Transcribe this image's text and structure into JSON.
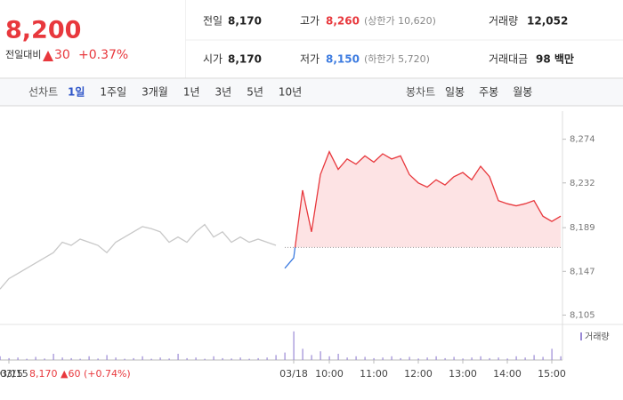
{
  "header": {
    "price": "8,200",
    "change_label": "전일대비",
    "change": "30",
    "change_pct": "+0.37%"
  },
  "stats": [
    {
      "label": "전일",
      "value": "8,170"
    },
    {
      "label": "고가",
      "value": "8,260",
      "note": "(상한가 10,620)"
    },
    {
      "label": "거래량",
      "value": "12,052"
    },
    {
      "label": "시가",
      "value": "8,170"
    },
    {
      "label": "저가",
      "value": "8,150",
      "note": "(하한가 5,720)"
    },
    {
      "label": "거래대금",
      "value": "98 백만"
    }
  ],
  "tabs": {
    "line_label": "선차트",
    "line": [
      "1일",
      "1주일",
      "3개월",
      "1년",
      "3년",
      "5년",
      "10년"
    ],
    "candle_label": "봉차트",
    "candle": [
      "일봉",
      "주봉",
      "월봉"
    ]
  },
  "chart_data": {
    "type": "line",
    "categories": [
      null,
      "03/15",
      null,
      null,
      null,
      null,
      null,
      null,
      null,
      null,
      null,
      null,
      null,
      null,
      null,
      null,
      null,
      null,
      null,
      null,
      null,
      null,
      null,
      null,
      null,
      null,
      null,
      null,
      null,
      null,
      null,
      null,
      null,
      "03/18",
      null,
      null,
      null,
      "10:00",
      null,
      null,
      null,
      null,
      "11:00",
      null,
      null,
      null,
      null,
      "12:00",
      null,
      null,
      null,
      null,
      "13:00",
      null,
      null,
      null,
      null,
      "14:00",
      null,
      null,
      null,
      null,
      "15:00",
      null
    ],
    "series": [
      {
        "color": "#c8c8c8",
        "values": [
          8130,
          8140,
          8145,
          8150,
          8155,
          8160,
          8165,
          8175,
          8172,
          8178,
          8175,
          8172,
          8165,
          8175,
          8180,
          8185,
          8190,
          8188,
          8185,
          8175,
          8180,
          8175,
          8185,
          8192,
          8180,
          8185,
          8175,
          8180,
          8175,
          8178,
          8175,
          8172,
          null,
          null,
          null,
          null,
          null,
          null,
          null,
          null,
          null,
          null,
          null,
          null,
          null,
          null,
          null,
          null,
          null,
          null,
          null,
          null,
          null,
          null,
          null,
          null,
          null,
          null,
          null,
          null,
          null,
          null,
          null,
          null
        ]
      },
      {
        "color": "#e8383d",
        "below_color": "#3c7be0",
        "fill": "#fde3e4",
        "values": [
          null,
          null,
          null,
          null,
          null,
          null,
          null,
          null,
          null,
          null,
          null,
          null,
          null,
          null,
          null,
          null,
          null,
          null,
          null,
          null,
          null,
          null,
          null,
          null,
          null,
          null,
          null,
          null,
          null,
          null,
          null,
          null,
          8150,
          8160,
          8225,
          8185,
          8240,
          8262,
          8245,
          8255,
          8250,
          8258,
          8252,
          8260,
          8255,
          8258,
          8240,
          8232,
          8228,
          8235,
          8230,
          8238,
          8242,
          8235,
          8248,
          8238,
          8215,
          8212,
          8210,
          8212,
          8215,
          8200,
          8195,
          8200
        ]
      }
    ],
    "baseline": 8170,
    "ylim": [
      8096,
      8301
    ],
    "yticks": [
      {
        "value": 8105,
        "label": "8,105"
      },
      {
        "value": 8147,
        "label": "8,147"
      },
      {
        "value": 8189,
        "label": "8,189"
      },
      {
        "value": 8232,
        "label": "8,232"
      },
      {
        "value": 8274,
        "label": "8,274"
      }
    ],
    "grid": false,
    "volume": {
      "name": "거래량",
      "color": "#9b8ad6",
      "vlim": [
        0,
        2500
      ],
      "values": [
        300,
        150,
        200,
        100,
        250,
        120,
        500,
        200,
        150,
        100,
        300,
        120,
        400,
        200,
        100,
        150,
        300,
        100,
        200,
        120,
        500,
        150,
        200,
        100,
        300,
        150,
        120,
        200,
        100,
        150,
        200,
        400,
        600,
        2300,
        900,
        400,
        700,
        300,
        500,
        200,
        300,
        250,
        150,
        200,
        300,
        150,
        250,
        120,
        200,
        300,
        150,
        250,
        120,
        200,
        300,
        150,
        200,
        120,
        300,
        200,
        400,
        250,
        900,
        300
      ]
    },
    "footer": {
      "date": "03/15",
      "text": "8,170 ▲60 (+0.74%)"
    }
  }
}
